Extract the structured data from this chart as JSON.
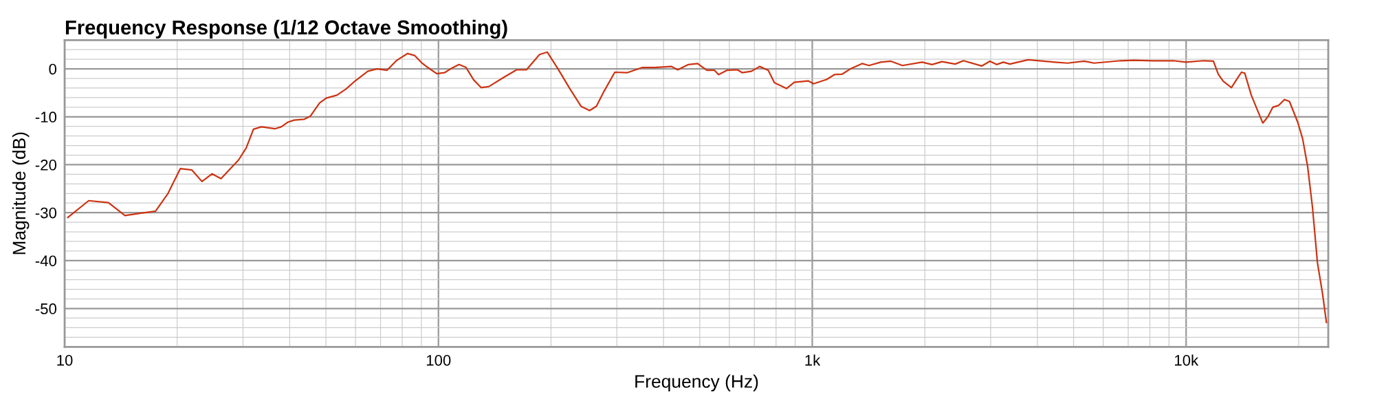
{
  "chart_data": {
    "type": "line",
    "title": "Frequency Response (1/12 Octave Smoothing)",
    "xlabel": "Frequency (Hz)",
    "ylabel": "Magnitude (dB)",
    "log": "x",
    "grid": true,
    "xlim": [
      10,
      24000
    ],
    "ylim": [
      -58,
      6
    ],
    "xticks": [
      10,
      100,
      {
        "value": 1000,
        "label": "1k"
      },
      {
        "value": 10000,
        "label": "10k"
      }
    ],
    "yticks": [
      0,
      -10,
      -20,
      -30,
      -40,
      -50
    ],
    "series": [
      {
        "color": "#cc3311",
        "x": [
          10.2,
          11.6,
          13.1,
          14.5,
          16.0,
          17.5,
          18.9,
          20.4,
          21.9,
          23.3,
          24.8,
          26.2,
          29.2,
          30.6,
          32.0,
          33.6,
          36.5,
          38.0,
          39.6,
          41.1,
          43.8,
          45.4,
          48.1,
          50.1,
          53.5,
          56.6,
          59.9,
          64.7,
          68.5,
          72.8,
          77.4,
          82.7,
          86.3,
          90.1,
          93.6,
          99.0,
          103.8,
          107.8,
          113.5,
          118.5,
          124.2,
          130,
          136.4,
          150,
          161.8,
          171.9,
          186.4,
          195.4,
          208.8,
          225.3,
          240.6,
          253.7,
          264.5,
          277.2,
          296.3,
          319.6,
          351.5,
          378.7,
          420.4,
          436.4,
          466.5,
          493.6,
          522.4,
          547.7,
          561.4,
          591.1,
          631,
          649.8,
          687.6,
          723,
          762.6,
          792,
          854,
          895,
          975,
          1008,
          1093,
          1146,
          1202,
          1272,
          1359,
          1419,
          1524,
          1622,
          1742,
          1967,
          2091,
          2223,
          2412,
          2537,
          2838,
          2987,
          3112,
          3243,
          3378,
          3779,
          4447,
          4823,
          5337,
          5673,
          6680,
          7245,
          8185,
          9250,
          10000,
          11120,
          11830,
          12190,
          12570,
          13220,
          13630,
          14060,
          14350,
          14940,
          15570,
          16040,
          16550,
          17060,
          17700,
          18330,
          18900,
          19880,
          20500,
          21140,
          21780,
          22450,
          23160,
          23730
        ],
        "values": [
          -31.0,
          -27.5,
          -27.9,
          -30.6,
          -30.1,
          -29.7,
          -26.0,
          -20.8,
          -21.1,
          -23.5,
          -21.9,
          -22.9,
          -19.0,
          -16.5,
          -12.6,
          -12.1,
          -12.5,
          -12.1,
          -11.1,
          -10.7,
          -10.5,
          -9.9,
          -7.1,
          -6.1,
          -5.5,
          -4.2,
          -2.5,
          -0.5,
          0,
          -0.3,
          1.8,
          3.2,
          2.8,
          1.3,
          0.3,
          -1.0,
          -0.8,
          0,
          0.9,
          0.3,
          -2.3,
          -3.9,
          -3.7,
          -1.7,
          -0.2,
          -0.2,
          3.0,
          3.5,
          0,
          -4.3,
          -7.8,
          -8.7,
          -7.8,
          -4.7,
          -0.7,
          -0.8,
          0.3,
          0.3,
          0.5,
          -0.2,
          0.9,
          1.1,
          -0.3,
          -0.3,
          -1.2,
          -0.3,
          -0.2,
          -0.8,
          -0.5,
          0.5,
          -0.3,
          -2.9,
          -4.1,
          -2.8,
          -2.5,
          -3.1,
          -2.2,
          -1.2,
          -1.1,
          0.1,
          1.1,
          0.7,
          1.4,
          1.6,
          0.7,
          1.4,
          0.9,
          1.5,
          1.0,
          1.7,
          0.6,
          1.6,
          0.9,
          1.4,
          1.0,
          1.9,
          1.4,
          1.2,
          1.6,
          1.2,
          1.7,
          1.8,
          1.7,
          1.7,
          1.4,
          1.7,
          1.6,
          -1.1,
          -2.6,
          -3.9,
          -2.3,
          -0.7,
          -0.9,
          -5.5,
          -8.9,
          -11.3,
          -10.0,
          -8.0,
          -7.6,
          -6.4,
          -6.8,
          -11.1,
          -14.6,
          -20.4,
          -28.9,
          -40.4,
          -46.8,
          -52.9
        ]
      }
    ]
  }
}
